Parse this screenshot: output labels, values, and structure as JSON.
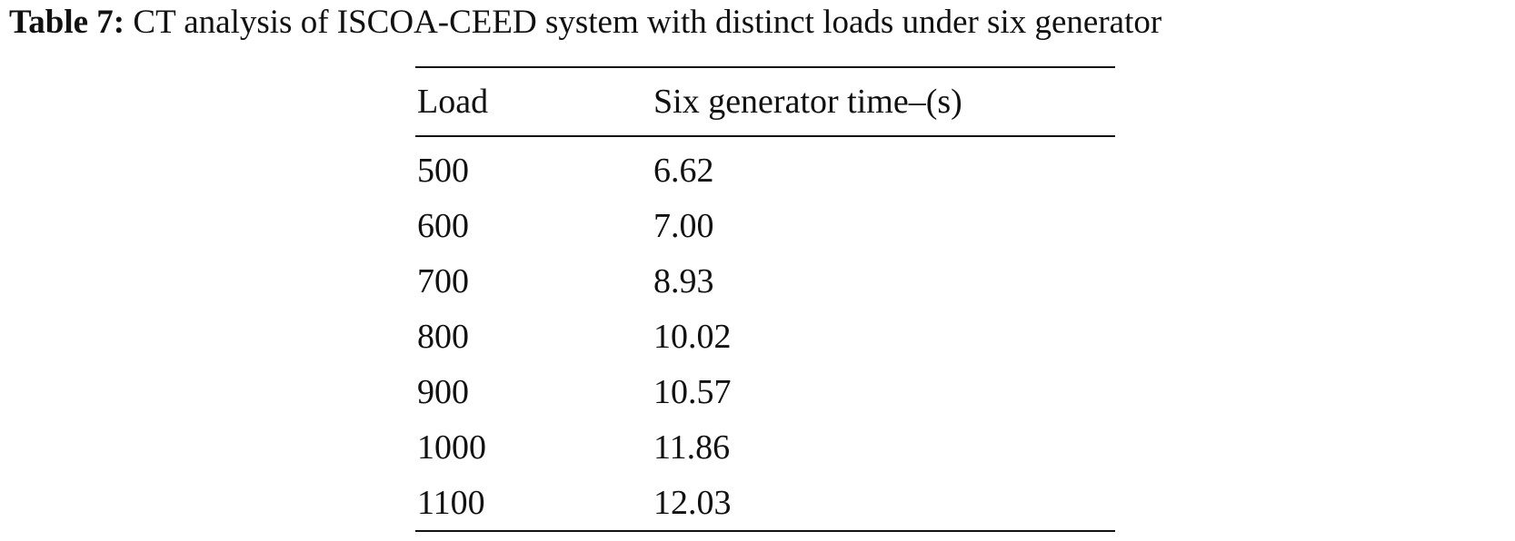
{
  "caption": {
    "label": "Table 7:",
    "text": "CT analysis of ISCOA-CEED system with distinct loads under six generator"
  },
  "table": {
    "headers": [
      "Load",
      "Six generator time–(s)"
    ],
    "rows": [
      [
        "500",
        "6.62"
      ],
      [
        "600",
        "7.00"
      ],
      [
        "700",
        "8.93"
      ],
      [
        "800",
        "10.02"
      ],
      [
        "900",
        "10.57"
      ],
      [
        "1000",
        "11.86"
      ],
      [
        "1100",
        "12.03"
      ]
    ]
  }
}
